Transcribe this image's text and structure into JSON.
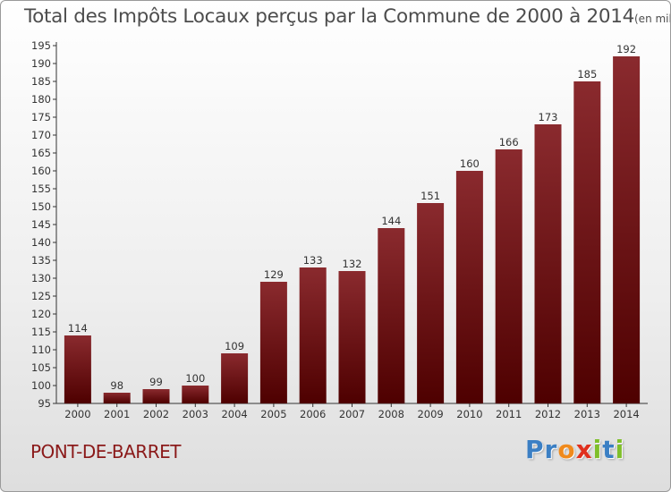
{
  "chart_data": {
    "type": "bar",
    "title": "Total des Impôts Locaux perçus par la Commune de 2000 à 2014",
    "unit_label": "(en milliers d'€)",
    "categories": [
      "2000",
      "2001",
      "2002",
      "2003",
      "2004",
      "2005",
      "2006",
      "2007",
      "2008",
      "2009",
      "2010",
      "2011",
      "2012",
      "2013",
      "2014"
    ],
    "values": [
      114,
      98,
      99,
      100,
      109,
      129,
      133,
      132,
      144,
      151,
      160,
      166,
      173,
      185,
      192
    ],
    "ylim": [
      95,
      195
    ],
    "ytick_step": 5,
    "xlabel": "",
    "ylabel": "",
    "grid": false,
    "bar_color": "#7a1f24"
  },
  "commune": "PONT-DE-BARRET",
  "logo": {
    "letters": [
      {
        "char": "P",
        "color": "#3b7fc4"
      },
      {
        "char": "r",
        "color": "#3b7fc4"
      },
      {
        "char": "o",
        "color": "#f08a1c"
      },
      {
        "char": "x",
        "color": "#e0301e"
      },
      {
        "char": "i",
        "color": "#7fbf2a"
      },
      {
        "char": "t",
        "color": "#3b7fc4"
      },
      {
        "char": "i",
        "color": "#7fbf2a"
      }
    ]
  }
}
